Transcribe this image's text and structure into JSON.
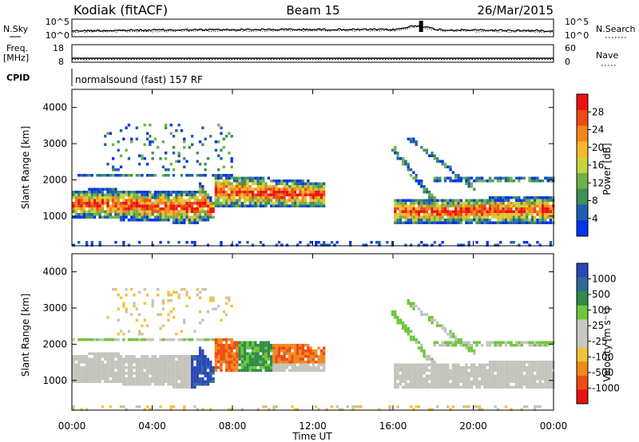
{
  "header": {
    "station": "Kodiak (fitACF)",
    "beam": "Beam 15",
    "date": "26/Mar/2015"
  },
  "nsky_panel": {
    "left_label": "N.Sky",
    "right_label": "N.Search",
    "ticks_left": [
      "10^5",
      "10^0"
    ],
    "ticks_right": [
      "10^5",
      "10^0"
    ]
  },
  "freq_panel": {
    "left_label_line1": "Freq.",
    "left_label_line2": "[MHz]",
    "right_label": "Nave",
    "ticks_left": [
      "18",
      "8"
    ],
    "ticks_right": [
      "60",
      "0"
    ]
  },
  "cpid": {
    "label": "CPID",
    "text": "normalsound (fast) 157 RF"
  },
  "chart_data": [
    {
      "type": "heatmap",
      "name": "power",
      "ylabel": "Slant Range [km]",
      "ylim": [
        180,
        4500
      ],
      "yticks": [
        1000,
        2000,
        3000,
        4000
      ],
      "colorbar_label": "Power [dB]",
      "colorbar_ticks": [
        "28",
        "24",
        "20",
        "16",
        "12",
        "8",
        "4"
      ],
      "colorbar_colors": [
        "#ee1111",
        "#f04a14",
        "#f2861b",
        "#f4b82a",
        "#c9d43a",
        "#6fb24a",
        "#3f8f56",
        "#1f5fae",
        "#0033ee"
      ]
    },
    {
      "type": "heatmap",
      "name": "velocity",
      "ylabel": "Slant Range [km]",
      "ylim": [
        180,
        4500
      ],
      "yticks": [
        1000,
        2000,
        3000,
        4000
      ],
      "colorbar_label": "Velocity [m s⁻¹]",
      "colorbar_ticks": [
        "1000",
        "500",
        "100",
        "25",
        "-25",
        "-100",
        "-500",
        "-1000"
      ],
      "colorbar_colors": [
        "#2a47b8",
        "#2c6a9a",
        "#2f8d47",
        "#6fc63a",
        "#c8c8c0",
        "#c8c8c0",
        "#f2c23a",
        "#ef8a1c",
        "#ee4a16",
        "#e81010"
      ]
    }
  ],
  "time_axis": {
    "xlabel": "Time UT",
    "xlim": [
      0,
      24
    ],
    "ticks": [
      "00:00",
      "04:00",
      "08:00",
      "12:00",
      "16:00",
      "20:00",
      "00:00"
    ]
  }
}
